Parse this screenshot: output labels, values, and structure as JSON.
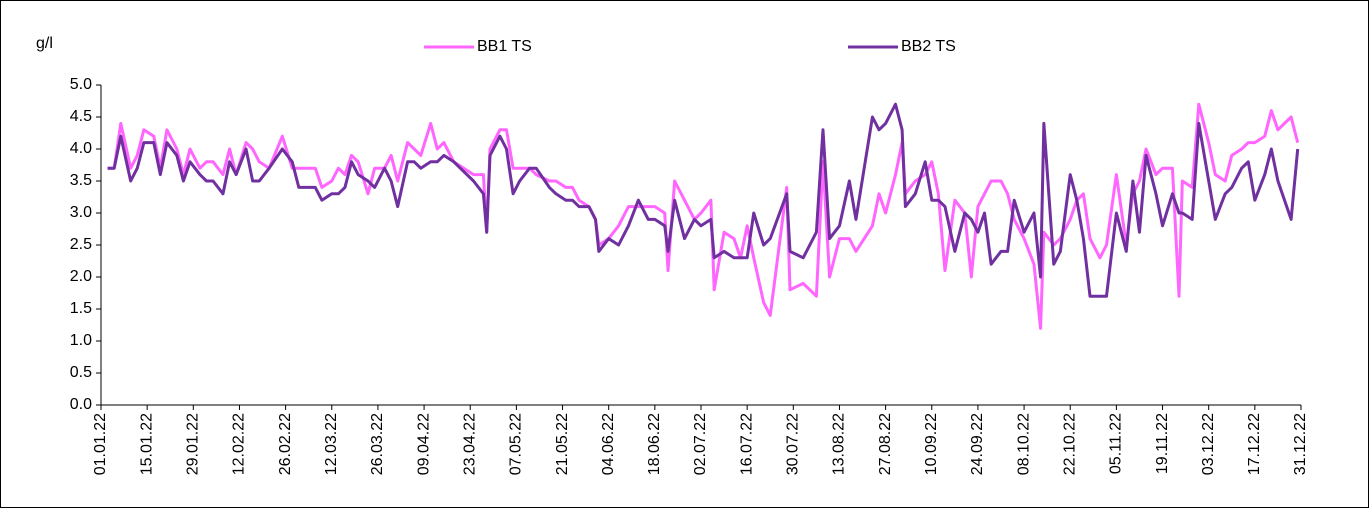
{
  "chart_data": {
    "type": "line",
    "y_label": "g/l",
    "x": [
      "03.01.22",
      "05.01.22",
      "07.01.22",
      "10.01.22",
      "12.01.22",
      "14.01.22",
      "17.01.22",
      "19.01.22",
      "21.01.22",
      "24.01.22",
      "26.01.22",
      "28.01.22",
      "31.01.22",
      "02.02.22",
      "04.02.22",
      "07.02.22",
      "09.02.22",
      "11.02.22",
      "14.02.22",
      "16.02.22",
      "18.02.22",
      "21.02.22",
      "25.02.22",
      "28.02.22",
      "02.03.22",
      "07.03.22",
      "09.03.22",
      "12.03.22",
      "14.03.22",
      "16.03.22",
      "18.03.22",
      "20.03.22",
      "23.03.22",
      "25.03.22",
      "28.03.22",
      "30.03.22",
      "01.04.22",
      "04.04.22",
      "06.04.22",
      "08.04.22",
      "11.04.22",
      "13.04.22",
      "15.04.22",
      "18.04.22",
      "24.04.22",
      "27.04.22",
      "28.04.22",
      "29.04.22",
      "02.05.22",
      "04.05.22",
      "06.05.22",
      "08.05.22",
      "11.05.22",
      "13.05.22",
      "17.05.22",
      "19.05.22",
      "22.05.22",
      "24.05.22",
      "26.05.22",
      "29.05.22",
      "31.05.22",
      "01.06.22",
      "04.06.22",
      "07.06.22",
      "10.06.22",
      "13.06.22",
      "16.06.22",
      "18.06.22",
      "21.06.22",
      "22.06.22",
      "24.06.22",
      "27.06.22",
      "30.06.22",
      "02.07.22",
      "05.07.22",
      "06.07.22",
      "09.07.22",
      "12.07.22",
      "14.07.22",
      "16.07.22",
      "18.07.22",
      "21.07.22",
      "23.07.22",
      "28.07.22",
      "29.07.22",
      "02.08.22",
      "06.08.22",
      "08.08.22",
      "10.08.22",
      "13.08.22",
      "16.08.22",
      "18.08.22",
      "23.08.22",
      "25.08.22",
      "27.08.22",
      "30.08.22",
      "01.09.22",
      "02.09.22",
      "05.09.22",
      "08.09.22",
      "10.09.22",
      "12.09.22",
      "14.09.22",
      "17.09.22",
      "20.09.22",
      "22.09.22",
      "24.09.22",
      "26.09.22",
      "28.09.22",
      "01.10.22",
      "03.10.22",
      "05.10.22",
      "08.10.22",
      "11.10.22",
      "13.10.22",
      "14.10.22",
      "17.10.22",
      "19.10.22",
      "22.10.22",
      "24.10.22",
      "26.10.22",
      "28.10.22",
      "31.10.22",
      "02.11.22",
      "05.11.22",
      "08.11.22",
      "10.11.22",
      "12.11.22",
      "14.11.22",
      "17.11.22",
      "19.11.22",
      "22.11.22",
      "24.11.22",
      "25.11.22",
      "28.11.22",
      "30.11.22",
      "03.12.22",
      "05.12.22",
      "08.12.22",
      "10.12.22",
      "13.12.22",
      "15.12.22",
      "17.12.22",
      "20.12.22",
      "22.12.22",
      "24.12.22",
      "28.12.22",
      "30.12.22"
    ],
    "series": [
      {
        "name": "BB1 TS",
        "color": "#ff66ff",
        "values": [
          3.7,
          3.7,
          4.4,
          3.7,
          3.9,
          4.3,
          4.2,
          3.7,
          4.3,
          4.0,
          3.6,
          4.0,
          3.7,
          3.8,
          3.8,
          3.6,
          4.0,
          3.6,
          4.1,
          4.0,
          3.8,
          3.7,
          4.2,
          3.7,
          3.7,
          3.7,
          3.4,
          3.5,
          3.7,
          3.6,
          3.9,
          3.8,
          3.3,
          3.7,
          3.7,
          3.9,
          3.5,
          4.1,
          4.0,
          3.9,
          4.4,
          4.0,
          4.1,
          3.8,
          3.6,
          3.6,
          2.7,
          4.0,
          4.3,
          4.3,
          3.7,
          3.7,
          3.7,
          3.6,
          3.5,
          3.5,
          3.4,
          3.4,
          3.2,
          3.1,
          2.9,
          2.5,
          2.6,
          2.8,
          3.1,
          3.1,
          3.1,
          3.1,
          3.0,
          2.1,
          3.5,
          3.2,
          2.9,
          3.0,
          3.2,
          1.8,
          2.7,
          2.6,
          2.3,
          2.8,
          2.3,
          1.6,
          1.4,
          3.4,
          1.8,
          1.9,
          1.7,
          3.8,
          2.0,
          2.6,
          2.6,
          2.4,
          2.8,
          3.3,
          3.0,
          3.6,
          4.1,
          3.3,
          3.5,
          3.6,
          3.8,
          3.3,
          2.1,
          3.2,
          3.0,
          2.0,
          3.1,
          3.3,
          3.5,
          3.5,
          3.3,
          2.9,
          2.6,
          2.2,
          1.2,
          2.7,
          2.5,
          2.6,
          2.9,
          3.2,
          3.3,
          2.6,
          2.3,
          2.5,
          3.6,
          2.5,
          3.3,
          3.5,
          4.0,
          3.6,
          3.7,
          3.7,
          1.7,
          3.5,
          3.4,
          4.7,
          4.1,
          3.6,
          3.5,
          3.9,
          4.0,
          4.1,
          4.1,
          4.2,
          4.6,
          4.3,
          4.5,
          4.1
        ]
      },
      {
        "name": "BB2 TS",
        "color": "#7030a0",
        "values": [
          3.7,
          3.7,
          4.2,
          3.5,
          3.7,
          4.1,
          4.1,
          3.6,
          4.1,
          3.9,
          3.5,
          3.8,
          3.6,
          3.5,
          3.5,
          3.3,
          3.8,
          3.6,
          4.0,
          3.5,
          3.5,
          3.7,
          4.0,
          3.8,
          3.4,
          3.4,
          3.2,
          3.3,
          3.3,
          3.4,
          3.8,
          3.6,
          3.5,
          3.4,
          3.7,
          3.5,
          3.1,
          3.8,
          3.8,
          3.7,
          3.8,
          3.8,
          3.9,
          3.8,
          3.5,
          3.3,
          2.7,
          3.9,
          4.2,
          4.0,
          3.3,
          3.5,
          3.7,
          3.7,
          3.4,
          3.3,
          3.2,
          3.2,
          3.1,
          3.1,
          2.9,
          2.4,
          2.6,
          2.5,
          2.8,
          3.2,
          2.9,
          2.9,
          2.8,
          2.4,
          3.2,
          2.6,
          2.9,
          2.8,
          2.9,
          2.3,
          2.4,
          2.3,
          2.3,
          2.3,
          3.0,
          2.5,
          2.6,
          3.3,
          2.4,
          2.3,
          2.7,
          4.3,
          2.6,
          2.8,
          3.5,
          2.9,
          4.5,
          4.3,
          4.4,
          4.7,
          4.3,
          3.1,
          3.3,
          3.8,
          3.2,
          3.2,
          3.1,
          2.4,
          3.0,
          2.9,
          2.7,
          3.0,
          2.2,
          2.4,
          2.4,
          3.2,
          2.7,
          3.0,
          2.0,
          4.4,
          2.2,
          2.4,
          3.6,
          3.2,
          2.6,
          1.7,
          1.7,
          1.7,
          3.0,
          2.4,
          3.5,
          2.7,
          3.9,
          3.3,
          2.8,
          3.3,
          3.0,
          3.0,
          2.9,
          4.4,
          3.5,
          2.9,
          3.3,
          3.4,
          3.7,
          3.8,
          3.2,
          3.6,
          4.0,
          3.5,
          2.9,
          4.0
        ]
      }
    ],
    "xlim": [
      "01.01.22",
      "31.12.22"
    ],
    "xticks": [
      "01.01.22",
      "15.01.22",
      "29.01.22",
      "12.02.22",
      "26.02.22",
      "12.03.22",
      "26.03.22",
      "09.04.22",
      "23.04.22",
      "07.05.22",
      "21.05.22",
      "04.06.22",
      "18.06.22",
      "02.07.22",
      "16.07.22",
      "30.07.22",
      "13.08.22",
      "27.08.22",
      "10.09.22",
      "24.09.22",
      "08.10.22",
      "22.10.22",
      "05.11.22",
      "19.11.22",
      "03.12.22",
      "17.12.22",
      "31.12.22"
    ],
    "ylim": [
      0,
      5
    ],
    "yticks": [
      {
        "value": 0,
        "label": "0.0"
      },
      0.5,
      {
        "value": 1,
        "label": "1.0"
      },
      1.5,
      {
        "value": 2,
        "label": "2.0"
      },
      2.5,
      {
        "value": 3,
        "label": "3.0"
      },
      3.5,
      {
        "value": 4,
        "label": "4.0"
      },
      4.5,
      {
        "value": 5,
        "label": "5.0"
      }
    ],
    "grid": false,
    "legend": "top"
  }
}
